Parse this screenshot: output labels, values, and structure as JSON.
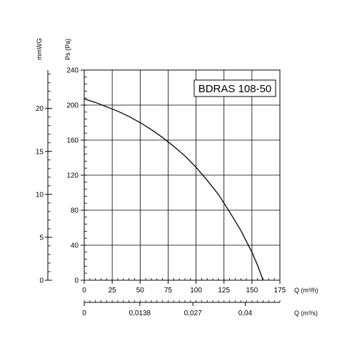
{
  "chart_data": {
    "type": "line",
    "title": "BDRAS 108-50",
    "x_label": "Q (m³/h)",
    "x2_label": "Q (m³/s)",
    "y_label": "Ps (Pa)",
    "y2_label": "mmWG",
    "xlim": [
      0,
      175
    ],
    "ylim": [
      0,
      240
    ],
    "x_ticks": [
      0,
      25,
      50,
      75,
      100,
      125,
      150,
      175
    ],
    "y_ticks": [
      0,
      40,
      80,
      120,
      160,
      200,
      240
    ],
    "y2_ticks": [
      {
        "label": "0",
        "value": 0
      },
      {
        "label": "5",
        "value": 5
      },
      {
        "label": "10",
        "value": 10
      },
      {
        "label": "15",
        "value": 15
      },
      {
        "label": "20",
        "value": 20
      }
    ],
    "x2_ticks": [
      {
        "label": "0",
        "m3h": 0
      },
      {
        "label": "0,0138",
        "m3h": 49.7
      },
      {
        "label": "0,027",
        "m3h": 97.2
      },
      {
        "label": "0,04",
        "m3h": 144
      }
    ],
    "grid": true,
    "series": [
      {
        "x": [
          0,
          10,
          20,
          30,
          40,
          50,
          60,
          70,
          80,
          90,
          100,
          110,
          120,
          130,
          140,
          150,
          155,
          160
        ],
        "y": [
          207,
          203,
          198,
          193,
          187,
          180,
          172,
          163,
          153,
          142,
          129,
          114,
          98,
          78,
          57,
          32,
          17,
          0
        ]
      }
    ]
  }
}
